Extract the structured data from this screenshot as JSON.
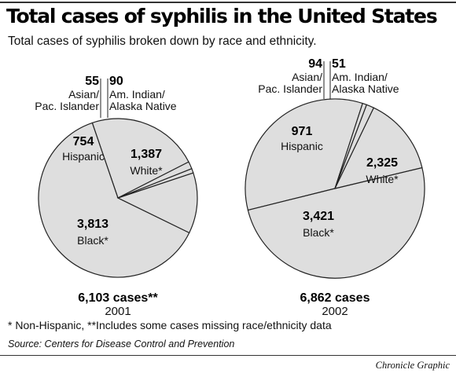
{
  "header": {
    "title": "Total cases of syphilis in the United States",
    "subtitle": "Total cases of syphilis broken down by race and ethnicity."
  },
  "chart_data": [
    {
      "type": "pie",
      "year": "2001",
      "total_label": "6,103 cases**",
      "slices": [
        {
          "name": "White*",
          "value": 1387,
          "value_label": "1,387",
          "name_lines": [
            "White*"
          ]
        },
        {
          "name": "Black*",
          "value": 3813,
          "value_label": "3,813",
          "name_lines": [
            "Black*"
          ]
        },
        {
          "name": "Hispanic",
          "value": 754,
          "value_label": "754",
          "name_lines": [
            "Hispanic"
          ]
        },
        {
          "name": "Asian/ Pac. Islander",
          "value": 55,
          "value_label": "55",
          "name_lines": [
            "Asian/",
            "Pac. Islander"
          ]
        },
        {
          "name": "Am. Indian/ Alaska Native",
          "value": 90,
          "value_label": "90",
          "name_lines": [
            "Am. Indian/",
            "Alaska Native"
          ]
        }
      ]
    },
    {
      "type": "pie",
      "year": "2002",
      "total_label": "6,862 cases",
      "slices": [
        {
          "name": "White*",
          "value": 2325,
          "value_label": "2,325",
          "name_lines": [
            "White*"
          ]
        },
        {
          "name": "Black*",
          "value": 3421,
          "value_label": "3,421",
          "name_lines": [
            "Black*"
          ]
        },
        {
          "name": "Hispanic",
          "value": 971,
          "value_label": "971",
          "name_lines": [
            "Hispanic"
          ]
        },
        {
          "name": "Asian/ Pac. Islander",
          "value": 94,
          "value_label": "94",
          "name_lines": [
            "Asian/",
            "Pac. Islander"
          ]
        },
        {
          "name": "Am. Indian/ Alaska Native",
          "value": 51,
          "value_label": "51",
          "name_lines": [
            "Am. Indian/",
            "Alaska Native"
          ]
        }
      ]
    }
  ],
  "footer": {
    "footnote": "* Non-Hispanic, **Includes some cases missing race/ethnicity data",
    "source": "Source: Centers for Disease Control and Prevention",
    "credit": "Chronicle Graphic"
  }
}
